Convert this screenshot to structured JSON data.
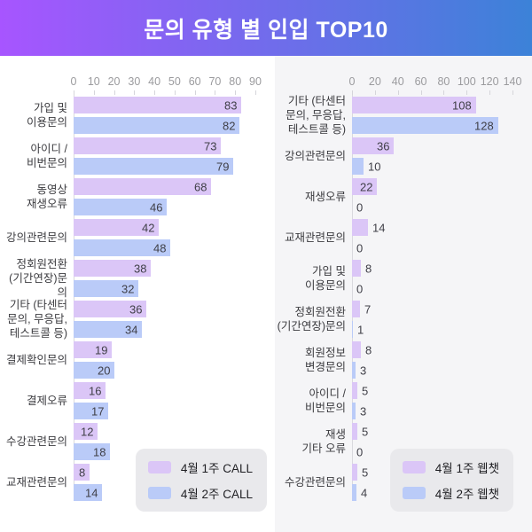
{
  "title": "문의 유형 별 인입 TOP10",
  "colors": {
    "banner_from": "#A755FF",
    "banner_to": "#3C82D8",
    "week1_bar": "#DBC6F7",
    "week2_bar": "#BACBF8",
    "panel_right_bg": "#F5F5F7",
    "legend_bg": "#E9E9EC"
  },
  "chart_data": [
    {
      "type": "bar",
      "orientation": "horizontal",
      "title": "",
      "xlabel": "",
      "ylabel": "",
      "xlim": [
        0,
        90
      ],
      "ticks": [
        0,
        10,
        20,
        30,
        40,
        50,
        60,
        70,
        80,
        90
      ],
      "grid": false,
      "legend_position": "bottom-right",
      "categories": [
        "가입 및\n이용문의",
        "아이디 /\n비번문의",
        "동영상\n재생오류",
        "강의관련문의",
        "정회원전환\n(기간연장)문의",
        "기타 (타센터\n문의, 무응답,\n테스트콜 등)",
        "결제확인문의",
        "결제오류",
        "수강관련문의",
        "교재관련문의"
      ],
      "series": [
        {
          "name": "4월 1주 CALL",
          "color": "#DBC6F7",
          "values": [
            83,
            73,
            68,
            42,
            38,
            36,
            19,
            16,
            12,
            8
          ]
        },
        {
          "name": "4월 2주 CALL",
          "color": "#BACBF8",
          "values": [
            82,
            79,
            46,
            48,
            32,
            34,
            20,
            17,
            18,
            14
          ]
        }
      ]
    },
    {
      "type": "bar",
      "orientation": "horizontal",
      "title": "",
      "xlabel": "",
      "ylabel": "",
      "xlim": [
        0,
        140
      ],
      "ticks": [
        0,
        20,
        40,
        60,
        80,
        100,
        120,
        140
      ],
      "grid": false,
      "legend_position": "bottom-right",
      "categories": [
        "기타 (타센터\n문의, 무응답,\n테스트콜 등)",
        "강의관련문의",
        "재생오류",
        "교재관련문의",
        "가입 및\n이용문의",
        "정회원전환\n(기간연장)문의",
        "회원정보\n변경문의",
        "아이디 /\n비번문의",
        "재생\n기타 오류",
        "수강관련문의"
      ],
      "series": [
        {
          "name": "4월 1주 웹챗",
          "color": "#DBC6F7",
          "values": [
            108,
            36,
            22,
            14,
            8,
            7,
            8,
            5,
            5,
            5
          ]
        },
        {
          "name": "4월 2주 웹챗",
          "color": "#BACBF8",
          "values": [
            128,
            10,
            0,
            0,
            0,
            1,
            3,
            3,
            0,
            4
          ]
        }
      ]
    }
  ]
}
